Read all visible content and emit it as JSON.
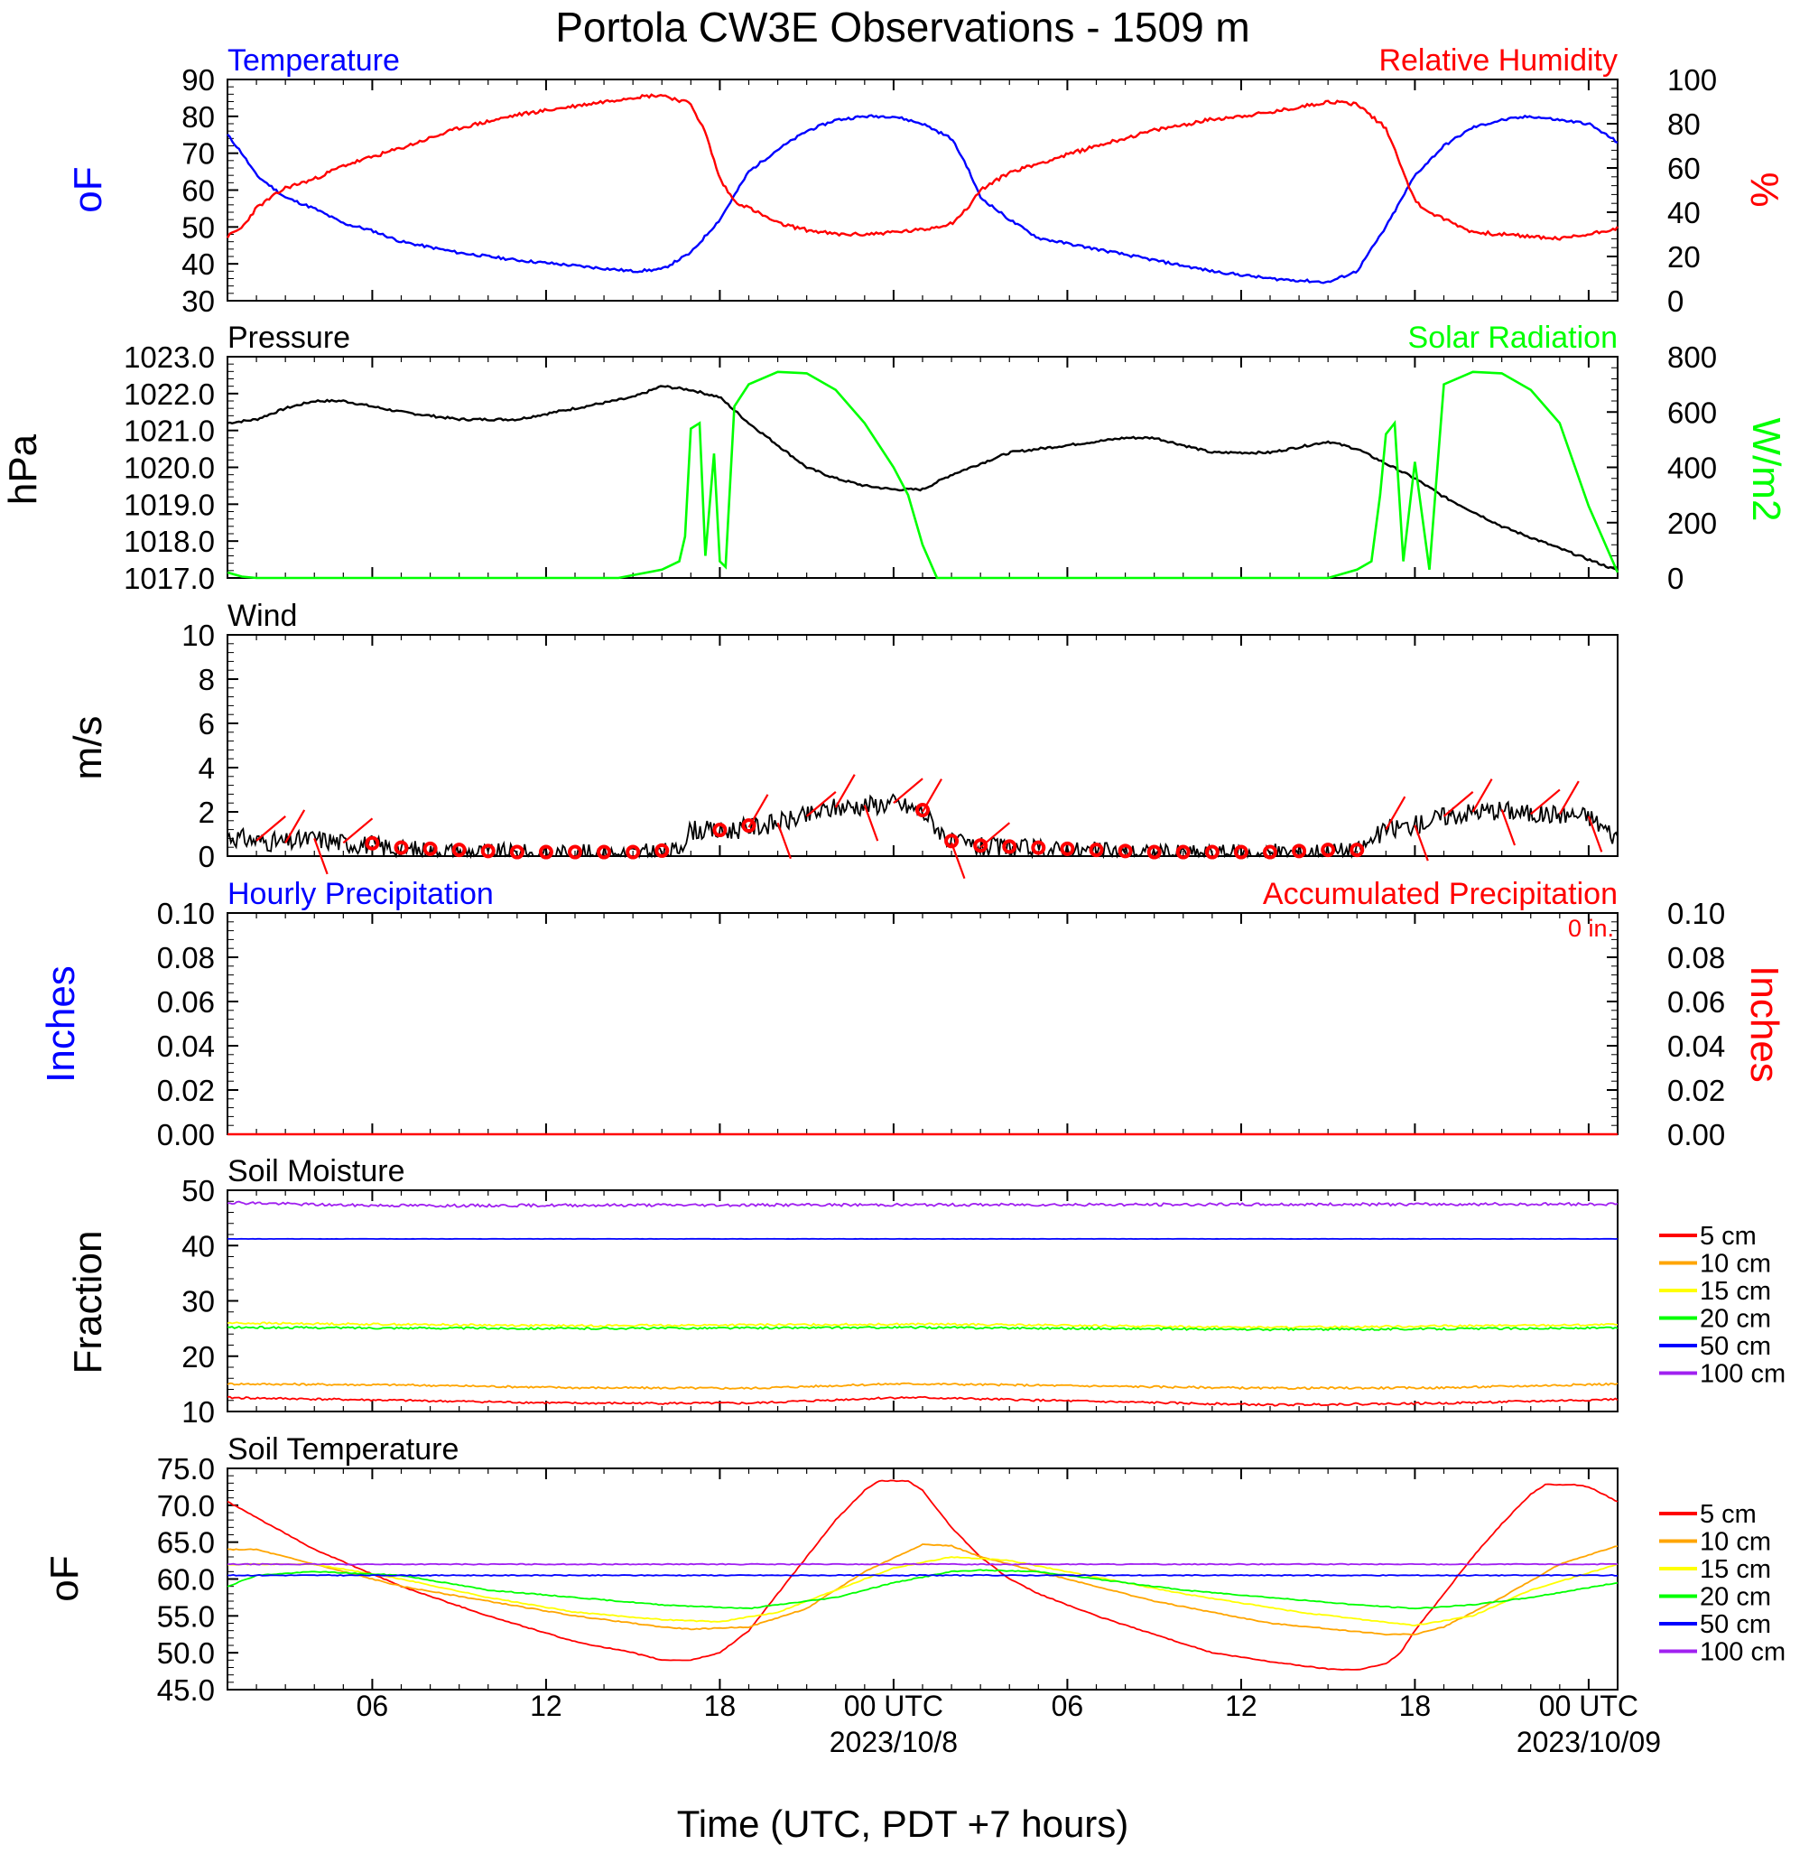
{
  "title": "Portola CW3E Observations - 1509 m",
  "xlabel": "Time (UTC, PDT +7 hours)",
  "colors": {
    "temp": "#0000ff",
    "rh": "#ff0000",
    "pressure": "#000000",
    "solar": "#00ff00",
    "wind": "#000000",
    "barb": "#ff0000",
    "hourly": "#0000ff",
    "accum": "#ff0000"
  },
  "x_axis": {
    "range_hours": [
      0,
      48
    ],
    "ticks": [
      {
        "h": 5,
        "label": "06"
      },
      {
        "h": 11,
        "label": "12"
      },
      {
        "h": 17,
        "label": "18"
      },
      {
        "h": 23,
        "label": "00 UTC"
      },
      {
        "h": 29,
        "label": "06"
      },
      {
        "h": 35,
        "label": "12"
      },
      {
        "h": 41,
        "label": "18"
      },
      {
        "h": 47,
        "label": "00 UTC"
      }
    ],
    "dates": [
      {
        "h": 23,
        "label": "2023/10/8"
      },
      {
        "h": 47,
        "label": "2023/10/09"
      }
    ]
  },
  "chart_data": [
    {
      "type": "line",
      "name": "temp-rh",
      "left_title": "Temperature",
      "right_title": "Relative Humidity",
      "ylabel_left": "oF",
      "ylabel_right": "%",
      "ylim_left": [
        30,
        90
      ],
      "ylim_right": [
        0,
        100
      ],
      "ticks_left": [
        "90",
        "80",
        "70",
        "60",
        "50",
        "40",
        "30"
      ],
      "ticks_right": [
        "100",
        "80",
        "60",
        "40",
        "20",
        "0"
      ],
      "series": [
        {
          "name": "Temperature",
          "axis": "left",
          "color": "#0000ff",
          "x": [
            0,
            0.5,
            1,
            2,
            3,
            4,
            5,
            6,
            8,
            10,
            12,
            14,
            15,
            16,
            17,
            18,
            19,
            20,
            21,
            22,
            23,
            24,
            25,
            25.5,
            26,
            27,
            28,
            30,
            32,
            34,
            36,
            38,
            39,
            40,
            41,
            42,
            43,
            44,
            45,
            46,
            47,
            48
          ],
          "y": [
            75,
            70,
            64,
            58,
            55,
            51,
            49,
            46,
            43,
            41,
            39.5,
            38,
            38.5,
            43,
            52,
            65,
            71,
            76,
            79,
            80,
            80,
            78,
            74,
            67,
            58,
            52,
            47,
            44,
            41,
            38,
            36,
            35,
            38,
            50,
            64,
            72,
            77,
            79,
            80,
            79,
            78,
            73
          ]
        },
        {
          "name": "Relative Humidity",
          "axis": "right",
          "color": "#ff0000",
          "x": [
            0,
            0.5,
            1,
            2,
            3,
            4,
            5,
            6,
            8,
            10,
            12,
            14,
            15,
            16,
            16.5,
            17,
            17.5,
            18,
            19,
            20,
            21,
            22,
            23,
            24,
            25,
            25.5,
            26,
            27,
            28,
            30,
            32,
            34,
            36,
            38,
            39,
            40,
            40.5,
            41,
            41.5,
            42,
            43,
            44,
            45,
            46,
            47,
            48
          ],
          "y": [
            29,
            33,
            42,
            51,
            55,
            61,
            65,
            69,
            78,
            84,
            88,
            92,
            93,
            89,
            76,
            55,
            45,
            42,
            35,
            32,
            30,
            30,
            31,
            32,
            35,
            41,
            50,
            58,
            62,
            70,
            77,
            82,
            85,
            90,
            89,
            78,
            62,
            45,
            40,
            37,
            31,
            30,
            29,
            28,
            30,
            33
          ]
        }
      ]
    },
    {
      "type": "line",
      "name": "pressure-solar",
      "left_title": "Pressure",
      "right_title": "Solar Radiation",
      "ylabel_left": "hPa",
      "ylabel_right": "W/m2",
      "ylim_left": [
        1017,
        1023
      ],
      "ylim_right": [
        0,
        800
      ],
      "ticks_left": [
        "1023.0",
        "1022.0",
        "1021.0",
        "1020.0",
        "1019.0",
        "1018.0",
        "1017.0"
      ],
      "ticks_right": [
        "800",
        "600",
        "400",
        "200",
        "0"
      ],
      "series": [
        {
          "name": "Pressure",
          "axis": "left",
          "color": "#000000",
          "x": [
            0,
            1,
            2,
            3,
            4,
            6,
            8,
            10,
            12,
            14,
            15,
            16,
            17,
            18,
            19,
            20,
            21,
            22,
            23,
            24,
            25,
            26,
            27,
            28,
            30,
            31,
            32,
            33,
            34,
            36,
            38,
            39,
            40,
            41,
            42,
            43,
            44,
            45,
            46,
            47,
            48
          ],
          "y": [
            1021.2,
            1021.3,
            1021.6,
            1021.8,
            1021.8,
            1021.5,
            1021.3,
            1021.3,
            1021.6,
            1021.9,
            1022.2,
            1022.1,
            1021.9,
            1021.2,
            1020.6,
            1020,
            1019.7,
            1019.5,
            1019.4,
            1019.4,
            1019.8,
            1020.1,
            1020.4,
            1020.5,
            1020.7,
            1020.8,
            1020.8,
            1020.6,
            1020.4,
            1020.4,
            1020.7,
            1020.5,
            1020.1,
            1019.7,
            1019.2,
            1018.8,
            1018.4,
            1018.1,
            1017.8,
            1017.5,
            1017.2
          ]
        },
        {
          "name": "Solar Radiation",
          "axis": "right",
          "color": "#00ff00",
          "x": [
            0,
            0.5,
            1,
            13.5,
            14,
            15,
            15.6,
            15.8,
            16,
            16.3,
            16.5,
            16.8,
            17,
            17.2,
            17.5,
            18,
            19,
            20,
            21,
            22,
            23,
            23.5,
            24,
            24.5,
            38,
            39,
            39.5,
            39.8,
            40,
            40.3,
            40.6,
            41,
            41.5,
            42,
            43,
            44,
            45,
            46,
            47,
            48
          ],
          "y": [
            20,
            5,
            0,
            0,
            10,
            30,
            60,
            150,
            540,
            560,
            80,
            450,
            60,
            40,
            620,
            700,
            745,
            740,
            680,
            560,
            400,
            300,
            120,
            0,
            0,
            30,
            60,
            300,
            520,
            560,
            60,
            420,
            30,
            700,
            745,
            740,
            680,
            560,
            260,
            20
          ]
        }
      ]
    },
    {
      "type": "line",
      "name": "wind",
      "title": "Wind",
      "ylabel": "m/s",
      "ylim": [
        0,
        10
      ],
      "ticks": [
        "10",
        "8",
        "6",
        "4",
        "2",
        "0"
      ],
      "series": [
        {
          "name": "Wind speed",
          "color": "#000000",
          "x": [
            0,
            1,
            2,
            3,
            4,
            5,
            6,
            8,
            10,
            12,
            14,
            15.5,
            16,
            17,
            18,
            19,
            20,
            21,
            22,
            23,
            24,
            25,
            26,
            28,
            30,
            32,
            34,
            36,
            38,
            39,
            40,
            41,
            42,
            43,
            44,
            45,
            46,
            47,
            48
          ],
          "y": [
            0.9,
            0.7,
            0.6,
            0.8,
            0.6,
            0.5,
            0.3,
            0.2,
            0.1,
            0.1,
            0.1,
            0.2,
            1.2,
            1.1,
            1.3,
            1.5,
            1.8,
            2.2,
            2.3,
            2.4,
            2.0,
            0.6,
            0.4,
            0.3,
            0.2,
            0.1,
            0.1,
            0.1,
            0.2,
            0.2,
            1.2,
            1.4,
            1.8,
            2.0,
            2.1,
            1.9,
            1.9,
            1.8,
            0.8
          ]
        }
      ],
      "calm_hours": [
        5,
        6,
        7,
        8,
        9,
        10,
        11,
        12,
        13,
        14,
        15,
        17,
        18,
        24,
        25,
        26,
        27,
        28,
        29,
        30,
        31,
        32,
        33,
        34,
        35,
        36,
        37,
        38,
        39
      ],
      "barb_hours": [
        1,
        2,
        3,
        4,
        18,
        19,
        20,
        21,
        22,
        23,
        24,
        25,
        26,
        40,
        41,
        42,
        43,
        44,
        45,
        46,
        47
      ]
    },
    {
      "type": "line",
      "name": "precipitation",
      "left_title": "Hourly Precipitation",
      "right_title": "Accumulated Precipitation",
      "accum_label": "0 in.",
      "ylabel_left": "Inches",
      "ylabel_right": "Inches",
      "ylim": [
        0,
        0.1
      ],
      "ticks_left": [
        "0.10",
        "0.08",
        "0.06",
        "0.04",
        "0.02",
        "0.00"
      ],
      "ticks_right": [
        "0.10",
        "0.08",
        "0.06",
        "0.04",
        "0.02",
        "0.00"
      ],
      "series": [
        {
          "name": "Hourly Precipitation",
          "color": "#0000ff",
          "values": [
            0
          ]
        },
        {
          "name": "Accumulated Precipitation",
          "color": "#ff0000",
          "values": [
            0
          ]
        }
      ]
    },
    {
      "type": "line",
      "name": "soil-moisture",
      "title": "Soil Moisture",
      "ylabel": "Fraction",
      "ylim": [
        10,
        50
      ],
      "ticks": [
        "50",
        "40",
        "30",
        "20",
        "10"
      ],
      "series": [
        {
          "name": "5 cm",
          "color": "#ff0000",
          "x": [
            0,
            6,
            12,
            18,
            23,
            24,
            30,
            36,
            42,
            48
          ],
          "y": [
            12.5,
            12,
            11.5,
            11.5,
            12.5,
            12.5,
            11.8,
            11.2,
            11.5,
            12.2
          ]
        },
        {
          "name": "10 cm",
          "color": "#ffa500",
          "x": [
            0,
            6,
            12,
            18,
            23,
            24,
            30,
            36,
            42,
            48
          ],
          "y": [
            15,
            14.8,
            14.3,
            14.2,
            15,
            15,
            14.6,
            14.2,
            14.3,
            15
          ]
        },
        {
          "name": "15 cm",
          "color": "#ffff00",
          "x": [
            0,
            12,
            24,
            36,
            48
          ],
          "y": [
            26,
            25.5,
            25.8,
            25.2,
            25.7
          ]
        },
        {
          "name": "20 cm",
          "color": "#00ff00",
          "x": [
            0,
            12,
            24,
            36,
            48
          ],
          "y": [
            25.2,
            25,
            25.2,
            24.8,
            25.1
          ]
        },
        {
          "name": "50 cm",
          "color": "#0000ff",
          "x": [
            0,
            48
          ],
          "y": [
            41.2,
            41.2
          ]
        },
        {
          "name": "100 cm",
          "color": "#a020f0",
          "x": [
            0,
            4,
            8,
            12,
            48
          ],
          "y": [
            47.8,
            47.3,
            47.2,
            47.3,
            47.5
          ]
        }
      ]
    },
    {
      "type": "line",
      "name": "soil-temperature",
      "title": "Soil Temperature",
      "ylabel": "oF",
      "ylim": [
        45,
        75
      ],
      "ticks": [
        "75.0",
        "70.0",
        "65.0",
        "60.0",
        "55.0",
        "50.0",
        "45.0"
      ],
      "series": [
        {
          "name": "5 cm",
          "color": "#ff0000",
          "x": [
            0,
            3,
            6,
            9,
            12,
            14,
            15,
            16,
            17,
            18,
            19,
            20,
            21,
            22,
            22.5,
            23.5,
            24,
            25,
            26,
            27,
            28,
            30,
            32,
            34,
            36,
            38,
            39,
            40,
            40.5,
            41,
            42,
            43,
            44,
            45,
            45.5,
            46.5,
            47,
            48
          ],
          "y": [
            70.5,
            64,
            59,
            55,
            51.5,
            50,
            49,
            49,
            50,
            53,
            58,
            63,
            68,
            72,
            73.3,
            73.3,
            72,
            67,
            63,
            60,
            58,
            55,
            52.5,
            50,
            48.8,
            47.8,
            47.7,
            48.5,
            50,
            53,
            58,
            63,
            67.5,
            71.5,
            72.8,
            72.8,
            72.5,
            70.5
          ]
        },
        {
          "name": "10 cm",
          "color": "#ffa500",
          "x": [
            0,
            1,
            3,
            6,
            9,
            12,
            15,
            16,
            18,
            20,
            22,
            24,
            25,
            26,
            28,
            32,
            36,
            40,
            41,
            42,
            44,
            46,
            48
          ],
          "y": [
            64,
            64,
            62,
            59,
            57,
            55,
            53.5,
            53.2,
            53.5,
            56,
            61,
            64.7,
            64.5,
            63,
            61,
            57,
            54,
            52.5,
            52.5,
            53.5,
            57.5,
            62,
            64.5
          ]
        },
        {
          "name": "15 cm",
          "color": "#ffff00",
          "x": [
            0,
            3,
            6,
            9,
            12,
            15,
            17,
            19,
            21,
            23,
            25,
            27,
            29,
            33,
            37,
            41,
            43,
            45,
            48
          ],
          "y": [
            62,
            62,
            60,
            57.5,
            55.5,
            54.5,
            54.2,
            55.5,
            58.5,
            61.5,
            63,
            62.5,
            61,
            58,
            55.5,
            53.7,
            55,
            58.5,
            62
          ]
        },
        {
          "name": "20 cm",
          "color": "#00ff00",
          "x": [
            0,
            1,
            3,
            6,
            9,
            12,
            15,
            18,
            21,
            23,
            25,
            26,
            28,
            30,
            33,
            36,
            39,
            41,
            43,
            45,
            48
          ],
          "y": [
            59,
            60.5,
            61,
            60.5,
            58.5,
            57.5,
            56.5,
            56,
            57.5,
            59.5,
            61,
            61.2,
            61,
            60,
            58.5,
            57.5,
            56.5,
            56,
            56.5,
            57.5,
            59.5
          ]
        },
        {
          "name": "50 cm",
          "color": "#0000ff",
          "x": [
            0,
            11,
            48
          ],
          "y": [
            60.5,
            60.5,
            60.5
          ]
        },
        {
          "name": "100 cm",
          "color": "#a020f0",
          "x": [
            0,
            48
          ],
          "y": [
            62,
            62
          ]
        }
      ]
    }
  ]
}
